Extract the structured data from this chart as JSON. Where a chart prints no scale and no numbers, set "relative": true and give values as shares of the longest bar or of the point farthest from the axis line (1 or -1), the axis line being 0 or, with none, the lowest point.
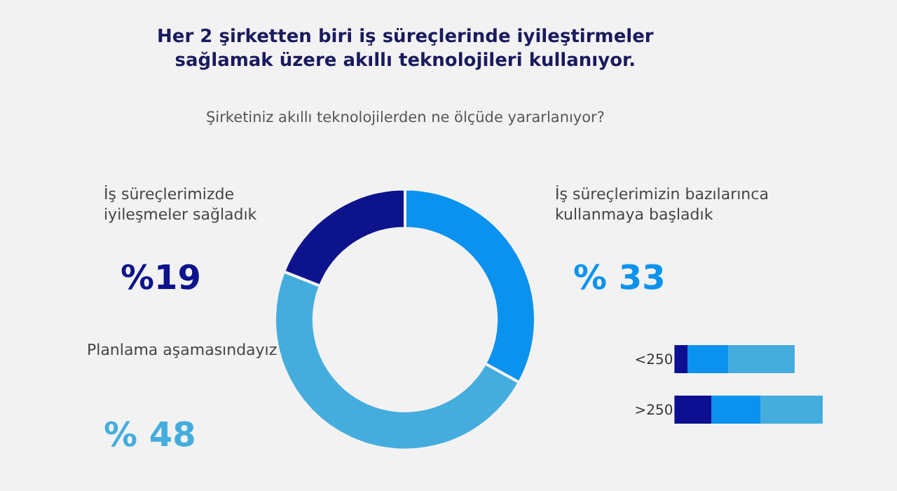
{
  "chart_data": [
    {
      "type": "donut",
      "title": "Her 2 şirketten biri iş süreçlerinde iyileştirmeler\nsağlamak üzere akıllı teknolojileri kullanıyor.",
      "subtitle": "Şirketiniz akıllı teknolojilerden ne ölçüde yararlanıyor?",
      "categories": [
        "İş süreçlerimizin bazılarınca\nkullanmaya başladık",
        "Planlama aşamasındayız",
        "İş süreçlerimizde\niyileşmeler sağladık"
      ],
      "values": [
        33,
        48,
        19
      ],
      "colors": [
        "#0a92ee",
        "#45addd",
        "#0c138c"
      ],
      "value_labels": [
        "% 33",
        "% 48",
        "%19"
      ]
    },
    {
      "type": "bar",
      "orientation": "horizontal",
      "stacked": true,
      "relative": true,
      "categories": [
        "<250",
        ">250"
      ],
      "series": [
        {
          "color": "#0c0f8f",
          "values": [
            0.09,
            0.25
          ]
        },
        {
          "color": "#0a92ee",
          "values": [
            0.27,
            0.33
          ]
        },
        {
          "color": "#45addd",
          "values": [
            0.45,
            0.42
          ]
        }
      ]
    }
  ]
}
